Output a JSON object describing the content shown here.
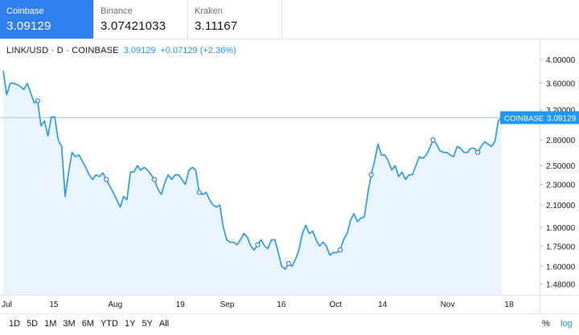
{
  "tabs": [
    {
      "exchange": "Coinbase",
      "price": "3.09129",
      "active": true
    },
    {
      "exchange": "Binance",
      "price": "3.07421033",
      "active": false
    },
    {
      "exchange": "Kraken",
      "price": "3.11167",
      "active": false
    }
  ],
  "legend": {
    "symbol": "LINK/USD · D · COINBASE",
    "price": "3.09129",
    "change": "+0.07129 (+2.36%)"
  },
  "ranges": [
    "1D",
    "5D",
    "1M",
    "3M",
    "6M",
    "YTD",
    "1Y",
    "5Y",
    "All"
  ],
  "scale_buttons": {
    "percent": "%",
    "log": "log"
  },
  "colors": {
    "accent": "#2f80ed",
    "line": "#2196f3",
    "area": "#eaf4fd"
  },
  "chart_data": {
    "type": "area",
    "x_start": "2020-07-01",
    "x_end": "2020-11-16",
    "scale": "log",
    "ylim": [
      1.42,
      4.25
    ],
    "y_ticks": [
      "4.00000",
      "3.60000",
      "3.20000",
      "2.80000",
      "2.50000",
      "2.30000",
      "2.10000",
      "1.90000",
      "1.75000",
      "1.60000",
      "1.48000"
    ],
    "y_tick_values": [
      4.0,
      3.6,
      3.2,
      2.8,
      2.5,
      2.3,
      2.1,
      1.9,
      1.75,
      1.6,
      1.48
    ],
    "x_ticks": [
      {
        "label": "Jul",
        "date": "2020-07-02"
      },
      {
        "label": "15",
        "date": "2020-07-15"
      },
      {
        "label": "Aug",
        "date": "2020-08-01"
      },
      {
        "label": "19",
        "date": "2020-08-19"
      },
      {
        "label": "Sep",
        "date": "2020-09-01"
      },
      {
        "label": "16",
        "date": "2020-09-16"
      },
      {
        "label": "Oct",
        "date": "2020-10-01"
      },
      {
        "label": "14",
        "date": "2020-10-14"
      },
      {
        "label": "Nov",
        "date": "2020-11-01"
      },
      {
        "label": "18",
        "date": "2020-11-18"
      }
    ],
    "values": [
      3.8,
      3.42,
      3.6,
      3.6,
      3.58,
      3.55,
      3.5,
      3.6,
      3.45,
      3.3,
      3.33,
      2.98,
      3.05,
      2.85,
      3.1,
      3.1,
      2.8,
      2.72,
      2.18,
      2.42,
      2.65,
      2.6,
      2.62,
      2.55,
      2.48,
      2.4,
      2.35,
      2.4,
      2.38,
      2.42,
      2.35,
      2.28,
      2.22,
      2.15,
      2.08,
      2.18,
      2.15,
      2.43,
      2.43,
      2.5,
      2.45,
      2.48,
      2.45,
      2.4,
      2.35,
      2.25,
      2.2,
      2.32,
      2.4,
      2.35,
      2.4,
      2.4,
      2.35,
      2.3,
      2.45,
      2.48,
      2.45,
      2.22,
      2.2,
      2.22,
      2.15,
      2.1,
      2.08,
      2.1,
      1.9,
      1.8,
      1.78,
      1.78,
      1.76,
      1.8,
      1.85,
      1.82,
      1.75,
      1.72,
      1.76,
      1.8,
      1.75,
      1.73,
      1.8,
      1.8,
      1.7,
      1.6,
      1.58,
      1.62,
      1.6,
      1.65,
      1.72,
      1.85,
      1.92,
      1.85,
      1.87,
      1.8,
      1.75,
      1.78,
      1.75,
      1.68,
      1.7,
      1.7,
      1.72,
      1.8,
      1.85,
      1.96,
      2.02,
      1.95,
      1.98,
      1.99,
      2.2,
      2.4,
      2.55,
      2.75,
      2.62,
      2.62,
      2.55,
      2.45,
      2.5,
      2.38,
      2.43,
      2.35,
      2.4,
      2.4,
      2.5,
      2.6,
      2.58,
      2.62,
      2.7,
      2.8,
      2.75,
      2.67,
      2.65,
      2.65,
      2.62,
      2.6,
      2.72,
      2.7,
      2.65,
      2.65,
      2.7,
      2.7,
      2.65,
      2.72,
      2.78,
      2.75,
      2.72,
      2.78,
      3.05,
      3.09129
    ],
    "markers": [
      10,
      30,
      44,
      57,
      74,
      83,
      98,
      107,
      125,
      138
    ],
    "last_label": "COINBASE",
    "last_value": "3.09129"
  }
}
